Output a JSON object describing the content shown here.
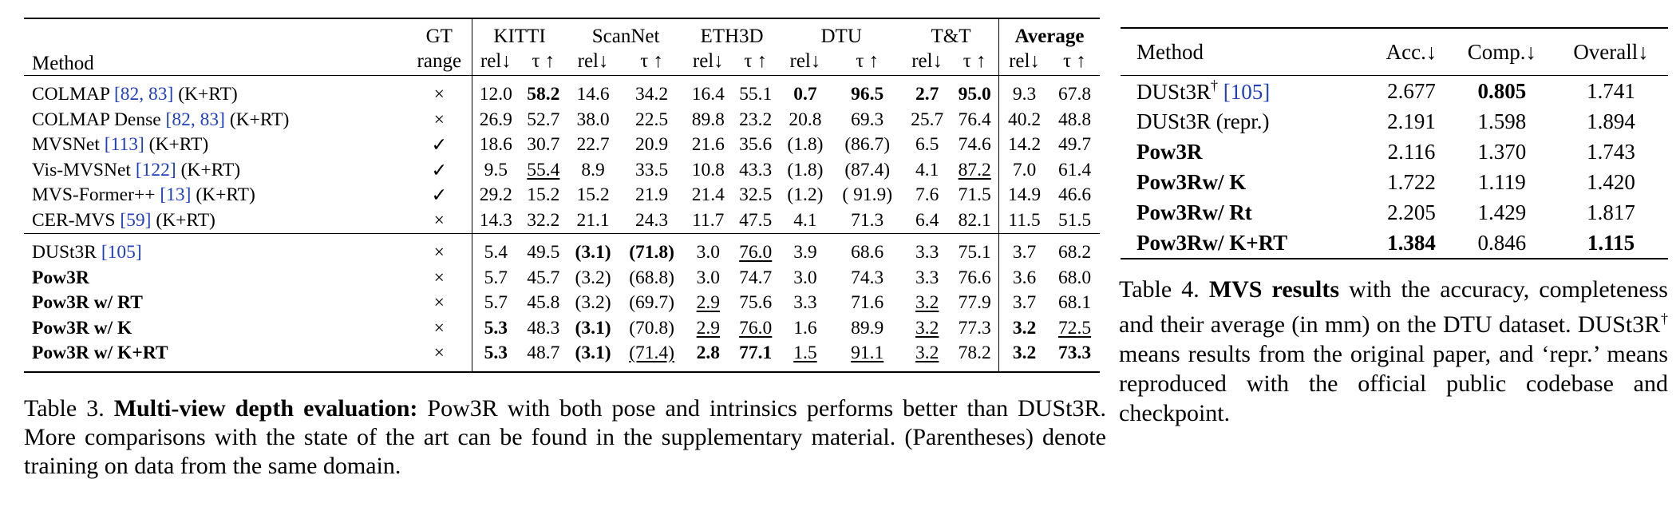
{
  "table3": {
    "header": {
      "method": "Method",
      "gt_line1": "GT",
      "gt_line2": "range",
      "datasets": [
        "KITTI",
        "ScanNet",
        "ETH3D",
        "DTU",
        "T&T"
      ],
      "average": "Average",
      "metric_rel": "rel↓",
      "metric_tau": "τ ↑"
    },
    "group1": [
      {
        "name": "COLMAP ",
        "cite": "[82, 83]",
        "suffix": " (K+RT)",
        "gt": "×",
        "v": [
          "12.0",
          "58.2",
          "14.6",
          "34.2",
          "16.4",
          "55.1",
          "0.7",
          "96.5",
          "2.7",
          "95.0",
          "9.3",
          "67.8"
        ],
        "bold": [
          1,
          6,
          7,
          8,
          9
        ],
        "under": []
      },
      {
        "name": "COLMAP Dense ",
        "cite": "[82, 83]",
        "suffix": " (K+RT)",
        "gt": "×",
        "v": [
          "26.9",
          "52.7",
          "38.0",
          "22.5",
          "89.8",
          "23.2",
          "20.8",
          "69.3",
          "25.7",
          "76.4",
          "40.2",
          "48.8"
        ],
        "bold": [],
        "under": []
      },
      {
        "name": "MVSNet ",
        "cite": "[113]",
        "suffix": " (K+RT)",
        "gt": "✓",
        "v": [
          "18.6",
          "30.7",
          "22.7",
          "20.9",
          "21.6",
          "35.6",
          "(1.8)",
          "(86.7)",
          "6.5",
          "74.6",
          "14.2",
          "49.7"
        ],
        "bold": [],
        "under": []
      },
      {
        "name": "Vis-MVSNet ",
        "cite": "[122]",
        "suffix": " (K+RT)",
        "gt": "✓",
        "v": [
          "9.5",
          "55.4",
          "8.9",
          "33.5",
          "10.8",
          "43.3",
          "(1.8)",
          "(87.4)",
          "4.1",
          "87.2",
          "7.0",
          "61.4"
        ],
        "bold": [],
        "under": [
          1,
          9
        ]
      },
      {
        "name": "MVS-Former++ ",
        "cite": "[13]",
        "suffix": " (K+RT)",
        "gt": "✓",
        "v": [
          "29.2",
          "15.2",
          "15.2",
          "21.9",
          "21.4",
          "32.5",
          "(1.2)",
          "( 91.9)",
          "7.6",
          "71.5",
          "14.9",
          "46.6"
        ],
        "bold": [],
        "under": []
      },
      {
        "name": "CER-MVS ",
        "cite": "[59]",
        "suffix": " (K+RT)",
        "gt": "×",
        "v": [
          "14.3",
          "32.2",
          "21.1",
          "24.3",
          "11.7",
          "47.5",
          "4.1",
          "71.3",
          "6.4",
          "82.1",
          "11.5",
          "51.5"
        ],
        "bold": [],
        "under": []
      }
    ],
    "group2": [
      {
        "name": "DUSt3R ",
        "cite": "[105]",
        "suffix": "",
        "bold_name": false,
        "gt": "×",
        "v": [
          "5.4",
          "49.5",
          "(3.1)",
          "(71.8)",
          "3.0",
          "76.0",
          "3.9",
          "68.6",
          "3.3",
          "75.1",
          "3.7",
          "68.2"
        ],
        "bold": [
          2,
          3
        ],
        "under": [
          5
        ]
      },
      {
        "name": "Pow3R",
        "cite": "",
        "suffix": "",
        "bold_name": true,
        "gt": "×",
        "v": [
          "5.7",
          "45.7",
          "(3.2)",
          "(68.8)",
          "3.0",
          "74.7",
          "3.0",
          "74.3",
          "3.3",
          "76.6",
          "3.6",
          "68.0"
        ],
        "bold": [],
        "under": []
      },
      {
        "name": "Pow3R w/ RT",
        "cite": "",
        "suffix": "",
        "bold_name": true,
        "gt": "×",
        "v": [
          "5.7",
          "45.8",
          "(3.2)",
          "(69.7)",
          "2.9",
          "75.6",
          "3.3",
          "71.6",
          "3.2",
          "77.9",
          "3.7",
          "68.1"
        ],
        "bold": [],
        "under": [
          4,
          8
        ]
      },
      {
        "name": "Pow3R w/ K",
        "cite": "",
        "suffix": "",
        "bold_name": true,
        "gt": "×",
        "v": [
          "5.3",
          "48.3",
          "(3.1)",
          "(70.8)",
          "2.9",
          "76.0",
          "1.6",
          "89.9",
          "3.2",
          "77.3",
          "3.2",
          "72.5"
        ],
        "bold": [
          0,
          2,
          10
        ],
        "under": [
          4,
          5,
          8,
          11
        ]
      },
      {
        "name": "Pow3R w/ K+RT",
        "cite": "",
        "suffix": "",
        "bold_name": true,
        "gt": "×",
        "v": [
          "5.3",
          "48.7",
          "(3.1)",
          "(71.4)",
          "2.8",
          "77.1",
          "1.5",
          "91.1",
          "3.2",
          "78.2",
          "3.2",
          "73.3"
        ],
        "bold": [
          0,
          2,
          4,
          5,
          10,
          11
        ],
        "under": [
          3,
          6,
          7,
          8
        ]
      }
    ],
    "caption": {
      "label": "Table 3. ",
      "bold": "Multi-view depth evaluation:",
      "text": " Pow3R with both pose and intrinsics performs better than DUSt3R. More comparisons with the state of the art can be found in the supplementary material. (Parentheses) denote training on data from the same domain."
    }
  },
  "table4": {
    "header": [
      "Method",
      "Acc.↓",
      "Comp.↓",
      "Overall↓"
    ],
    "rows": [
      {
        "name": "DUSt3R",
        "sup": "†",
        "cite": " [105]",
        "bold_name": false,
        "v": [
          "2.677",
          "0.805",
          "1.741"
        ],
        "bold": [
          1
        ]
      },
      {
        "name": "DUSt3R (repr.)",
        "sup": "",
        "cite": "",
        "bold_name": false,
        "v": [
          "2.191",
          "1.598",
          "1.894"
        ],
        "bold": []
      },
      {
        "name": "Pow3R",
        "sup": "",
        "cite": "",
        "bold_name": true,
        "v": [
          "2.116",
          "1.370",
          "1.743"
        ],
        "bold": []
      },
      {
        "name": "Pow3Rw/ K",
        "sup": "",
        "cite": "",
        "bold_name": true,
        "v": [
          "1.722",
          "1.119",
          "1.420"
        ],
        "bold": []
      },
      {
        "name": "Pow3Rw/ Rt",
        "sup": "",
        "cite": "",
        "bold_name": true,
        "v": [
          "2.205",
          "1.429",
          "1.817"
        ],
        "bold": []
      },
      {
        "name": "Pow3Rw/ K+RT",
        "sup": "",
        "cite": "",
        "bold_name": true,
        "v": [
          "1.384",
          "0.846",
          "1.115"
        ],
        "bold": [
          0,
          2
        ]
      }
    ],
    "caption": {
      "label": "Table 4. ",
      "bold": "MVS results",
      "text1": " with the accuracy, completeness and their average (in mm) on the DTU dataset. DUSt3R",
      "sup": "†",
      "text2": " means results from the original paper, and ‘repr.’ means reproduced with the official public codebase and checkpoint."
    }
  }
}
